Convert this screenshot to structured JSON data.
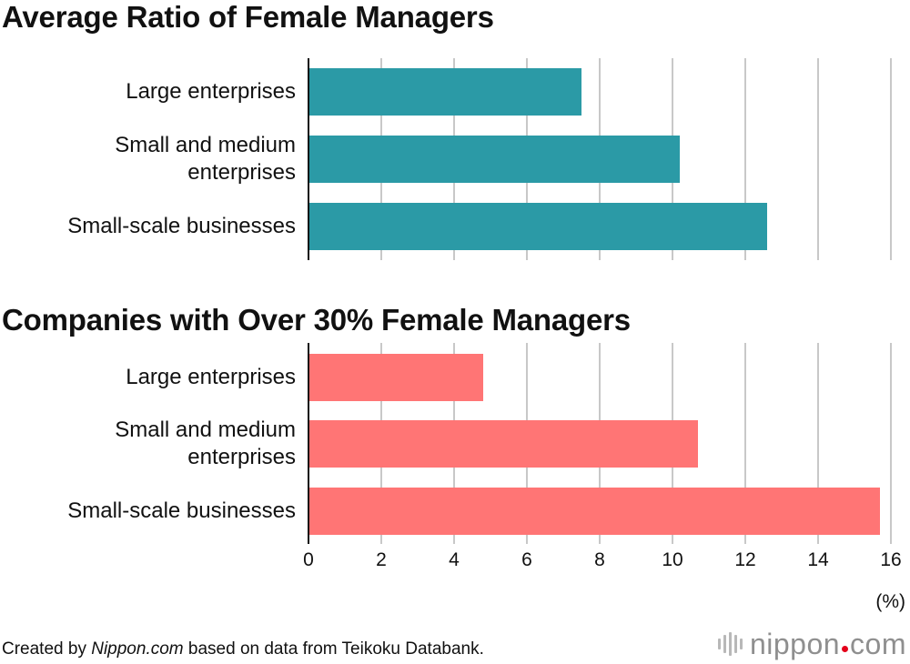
{
  "chart_data": [
    {
      "type": "bar",
      "orientation": "horizontal",
      "title": "Average Ratio of Female Managers",
      "categories": [
        "Large enterprises",
        "Small and medium enterprises",
        "Small-scale businesses"
      ],
      "category_lines": [
        [
          "Large enterprises"
        ],
        [
          "Small and medium",
          "enterprises"
        ],
        [
          "Small-scale businesses"
        ]
      ],
      "values": [
        7.5,
        10.2,
        12.6
      ],
      "color": "#2b9aa6",
      "xlim": [
        0,
        16
      ],
      "grid": true
    },
    {
      "type": "bar",
      "orientation": "horizontal",
      "title": "Companies with Over 30% Female Managers",
      "categories": [
        "Large enterprises",
        "Small and medium enterprises",
        "Small-scale businesses"
      ],
      "category_lines": [
        [
          "Large enterprises"
        ],
        [
          "Small and medium",
          "enterprises"
        ],
        [
          "Small-scale businesses"
        ]
      ],
      "values": [
        4.8,
        10.7,
        15.7
      ],
      "color": "#ff7575",
      "xlim": [
        0,
        16
      ],
      "xticks": [
        "0",
        "2",
        "4",
        "6",
        "8",
        "10",
        "12",
        "14",
        "16"
      ],
      "xunit": "(%)",
      "grid": true
    }
  ],
  "footer": {
    "prefix": "Created by ",
    "source_site": "Nippon.com",
    "suffix": " based on data from Teikoku Databank."
  },
  "logo": {
    "name_left": "nippon",
    "name_right": "com",
    "dot_color": "#e4001b"
  },
  "colors": {
    "gridline": "#c8c8c8",
    "axis": "#111111"
  }
}
